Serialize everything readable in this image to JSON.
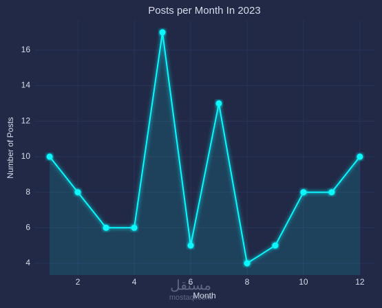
{
  "chart_data": {
    "type": "line",
    "title": "Posts per Month In 2023",
    "xlabel": "Month",
    "ylabel": "Number of Posts",
    "x": [
      1,
      2,
      3,
      4,
      5,
      6,
      7,
      8,
      9,
      10,
      11,
      12
    ],
    "series": [
      {
        "name": "Posts",
        "color": "#08F7FE",
        "values": [
          10,
          8,
          6,
          6,
          17,
          5,
          13,
          4,
          5,
          8,
          8,
          10
        ]
      }
    ],
    "xlim": [
      0.46,
      12.54
    ],
    "ylim": [
      3.34,
      17.66
    ],
    "xticks": [
      2,
      4,
      6,
      8,
      10,
      12
    ],
    "yticks": [
      4,
      6,
      8,
      10,
      12,
      14,
      16
    ],
    "grid": true,
    "area": true,
    "watermark": [
      "مستقل",
      "mostaql.com"
    ]
  }
}
